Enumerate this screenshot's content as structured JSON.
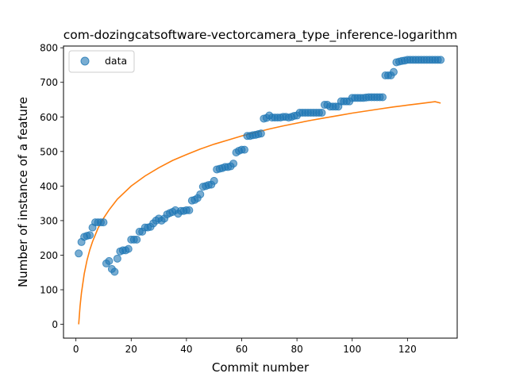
{
  "chart_data": {
    "type": "scatter",
    "title": "com-dozingcatsoftware-vectorcamera_type_inference-logarithm",
    "xlabel": "Commit number",
    "ylabel": "Number of instance of a feature",
    "xlim": [
      -4.5,
      138.0
    ],
    "ylim": [
      -40,
      805
    ],
    "xticks": [
      0,
      20,
      40,
      60,
      80,
      100,
      120
    ],
    "yticks": [
      0,
      100,
      200,
      300,
      400,
      500,
      600,
      700,
      800
    ],
    "legend": {
      "position": "upper-left",
      "entries": [
        "data"
      ]
    },
    "colors": {
      "data": "#1f77b4",
      "fit": "#ff7f0e"
    },
    "series": [
      {
        "name": "data",
        "kind": "scatter",
        "x": [
          1,
          2,
          3,
          4,
          5,
          6,
          7,
          8,
          9,
          10,
          11,
          12,
          13,
          14,
          15,
          16,
          17,
          18,
          19,
          20,
          21,
          22,
          23,
          24,
          25,
          26,
          27,
          28,
          29,
          30,
          31,
          32,
          33,
          34,
          35,
          36,
          37,
          38,
          39,
          40,
          41,
          42,
          43,
          44,
          45,
          46,
          47,
          48,
          49,
          50,
          51,
          52,
          53,
          54,
          55,
          56,
          57,
          58,
          59,
          60,
          61,
          62,
          63,
          64,
          65,
          66,
          67,
          68,
          69,
          70,
          71,
          72,
          73,
          74,
          75,
          76,
          77,
          78,
          79,
          80,
          81,
          82,
          83,
          84,
          85,
          86,
          87,
          88,
          89,
          90,
          91,
          92,
          93,
          94,
          95,
          96,
          97,
          98,
          99,
          100,
          101,
          102,
          103,
          104,
          105,
          106,
          107,
          108,
          109,
          110,
          111,
          112,
          113,
          114,
          115,
          116,
          117,
          118,
          119,
          120,
          121,
          122,
          123,
          124,
          125,
          126,
          127,
          128,
          129,
          130,
          131,
          132
        ],
        "y": [
          205,
          238,
          253,
          256,
          258,
          280,
          295,
          295,
          295,
          295,
          176,
          183,
          160,
          152,
          190,
          211,
          214,
          214,
          218,
          245,
          245,
          245,
          268,
          268,
          280,
          280,
          282,
          292,
          300,
          306,
          300,
          306,
          318,
          322,
          325,
          330,
          320,
          328,
          328,
          330,
          330,
          358,
          360,
          365,
          376,
          398,
          400,
          403,
          404,
          415,
          448,
          450,
          452,
          455,
          455,
          457,
          465,
          497,
          502,
          505,
          505,
          545,
          545,
          547,
          548,
          550,
          552,
          595,
          597,
          604,
          598,
          598,
          598,
          598,
          600,
          600,
          598,
          600,
          603,
          604,
          612,
          612,
          612,
          612,
          612,
          612,
          612,
          612,
          612,
          635,
          635,
          630,
          630,
          630,
          630,
          645,
          645,
          645,
          645,
          655,
          655,
          655,
          655,
          655,
          656,
          657,
          657,
          657,
          657,
          657,
          657,
          720,
          720,
          720,
          730,
          758,
          760,
          762,
          763,
          765,
          765,
          765,
          765,
          765,
          765,
          765,
          765,
          765,
          765,
          765,
          765,
          765
        ]
      },
      {
        "name": "",
        "kind": "line",
        "x": [
          1,
          1.5,
          2,
          3,
          4,
          5,
          6,
          8,
          10,
          12,
          15,
          20,
          25,
          30,
          35,
          40,
          45,
          50,
          55,
          60,
          65,
          70,
          75,
          80,
          85,
          90,
          95,
          100,
          105,
          110,
          115,
          120,
          125,
          130,
          132
        ],
        "y": [
          0,
          53,
          91,
          146,
          185,
          215,
          239,
          278,
          307,
          331,
          362,
          400,
          429,
          453,
          474,
          491,
          507,
          521,
          533,
          545,
          555,
          565,
          574,
          582,
          590,
          597,
          604,
          611,
          617,
          623,
          629,
          634,
          639,
          644,
          640
        ]
      }
    ]
  }
}
